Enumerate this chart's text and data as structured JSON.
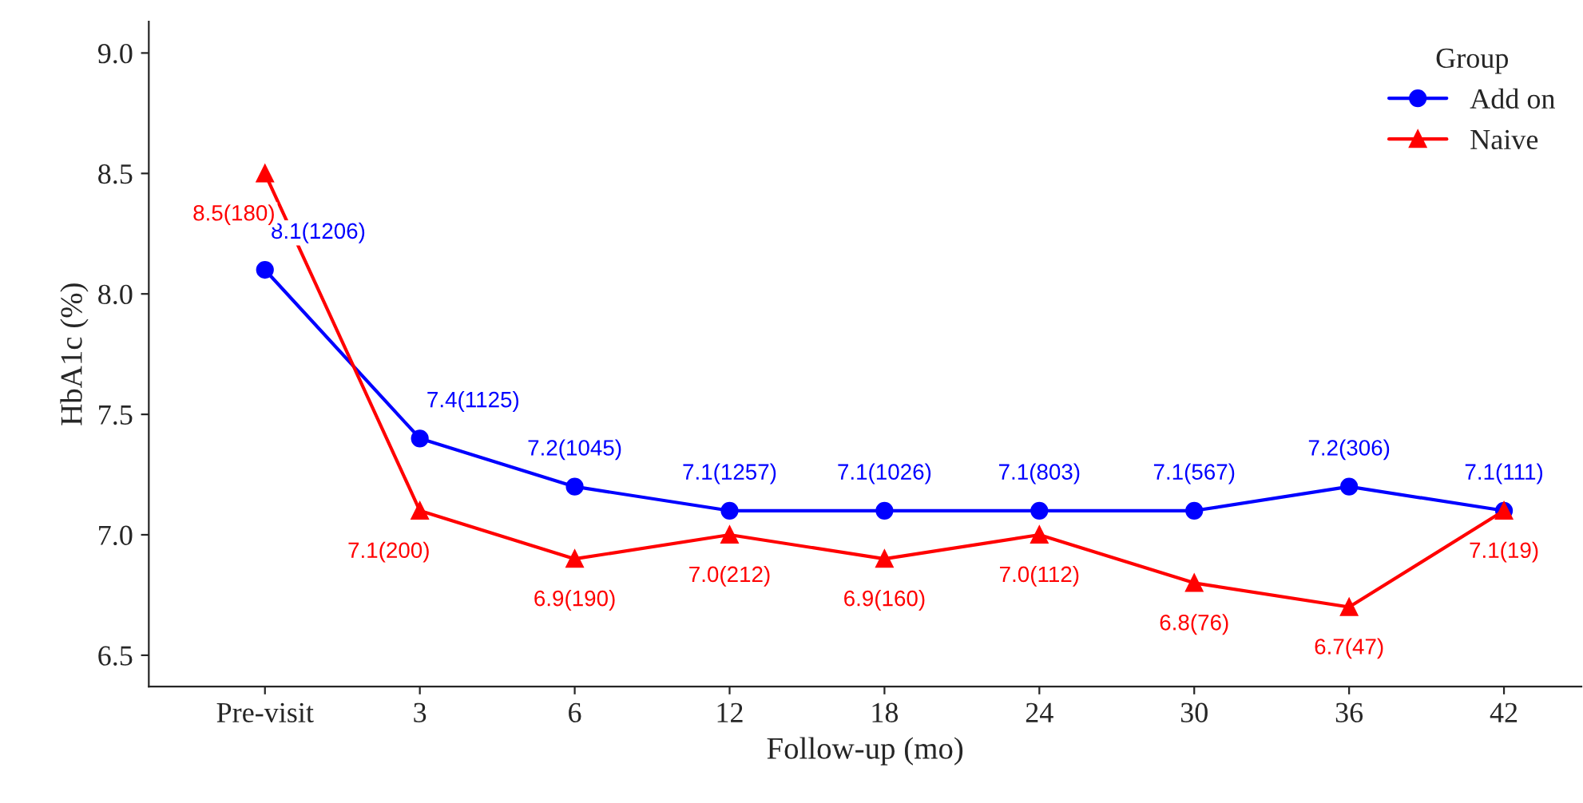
{
  "chart_data": {
    "type": "line",
    "xlabel": "Follow-up (mo)",
    "ylabel": "HbA1c (%)",
    "legend_title": "Group",
    "legend": "top right",
    "grid": false,
    "categories": [
      "Pre-visit",
      "3",
      "6",
      "12",
      "18",
      "24",
      "30",
      "36",
      "42"
    ],
    "ylim": [
      6.37,
      9.13
    ],
    "yticks": [
      6.5,
      {
        "value": 7,
        "label": "7.0"
      },
      7.5,
      {
        "value": 8,
        "label": "8.0"
      },
      8.5,
      {
        "value": 9,
        "label": "9.0"
      }
    ],
    "series": [
      {
        "name": "Add on",
        "color": "#0000ff",
        "marker": "circle",
        "values": [
          8.1,
          7.4,
          7.2,
          7.1,
          7.1,
          7.1,
          7.1,
          7.2,
          7.1
        ],
        "value_labels": [
          "8.1(1206)",
          "7.4(1125)",
          "7.2(1045)",
          "7.1(1257)",
          "7.1(1026)",
          "7.1(803)",
          "7.1(567)",
          "7.2(306)",
          "7.1(111)"
        ]
      },
      {
        "name": "Naive",
        "color": "#ff0000",
        "marker": "triangle",
        "values": [
          8.5,
          7.1,
          6.9,
          7.0,
          6.9,
          7.0,
          6.8,
          6.7,
          7.1
        ],
        "value_labels": [
          "8.5(180)",
          "7.1(200)",
          "6.9(190)",
          "7.0(212)",
          "6.9(160)",
          "7.0(112)",
          "6.8(76)",
          "6.7(47)",
          "7.1(19)"
        ]
      }
    ]
  }
}
